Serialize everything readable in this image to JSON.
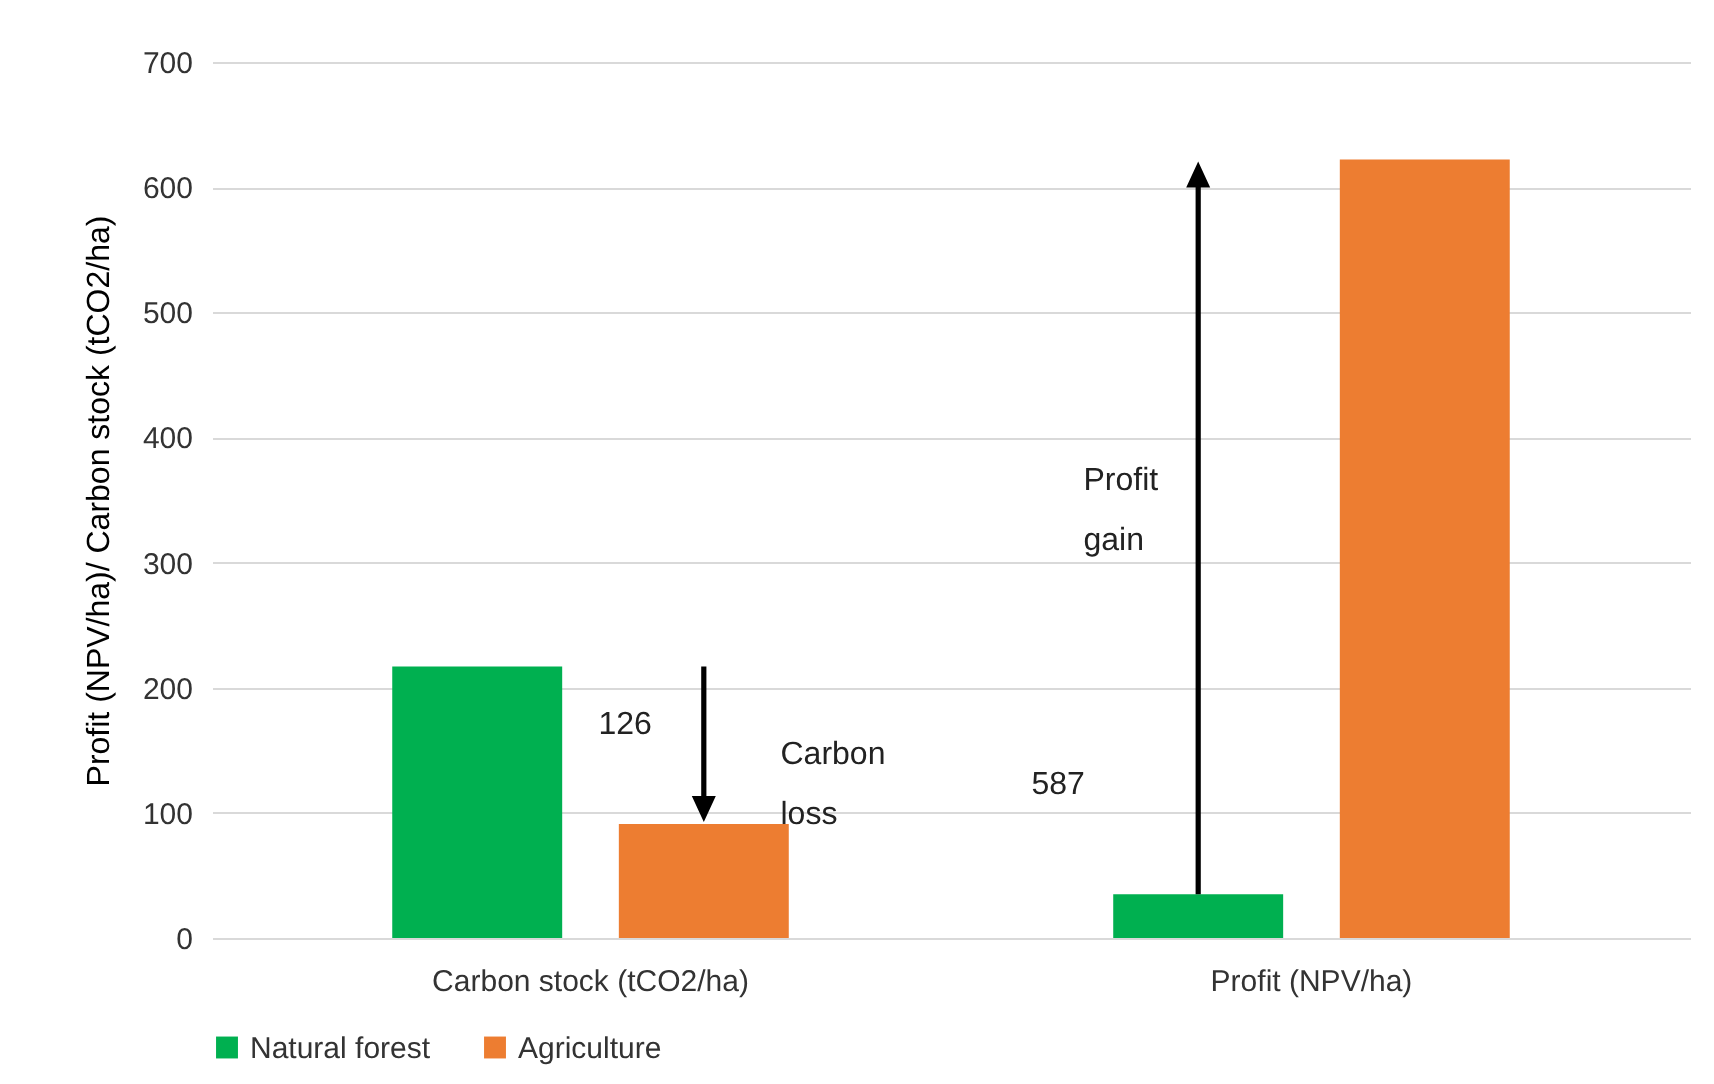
{
  "chart_data": {
    "type": "bar",
    "ylabel": "Profit (NPV/ha)/ Carbon stock (tCO2/ha)",
    "categories": [
      "Carbon stock (tCO2/ha)",
      "Profit (NPV/ha)"
    ],
    "series": [
      {
        "name": "Natural forest",
        "color": "#00b050",
        "values": [
          217,
          35
        ]
      },
      {
        "name": "Agriculture",
        "color": "#ed7d31",
        "values": [
          91,
          622
        ]
      }
    ],
    "ylim": [
      0,
      700
    ],
    "yticks": [
      0,
      100,
      200,
      300,
      400,
      500,
      600,
      700
    ],
    "grid": "y",
    "legend": "bottom",
    "annotations": [
      "126",
      "Carbon loss",
      "587",
      "Profit gain"
    ]
  }
}
